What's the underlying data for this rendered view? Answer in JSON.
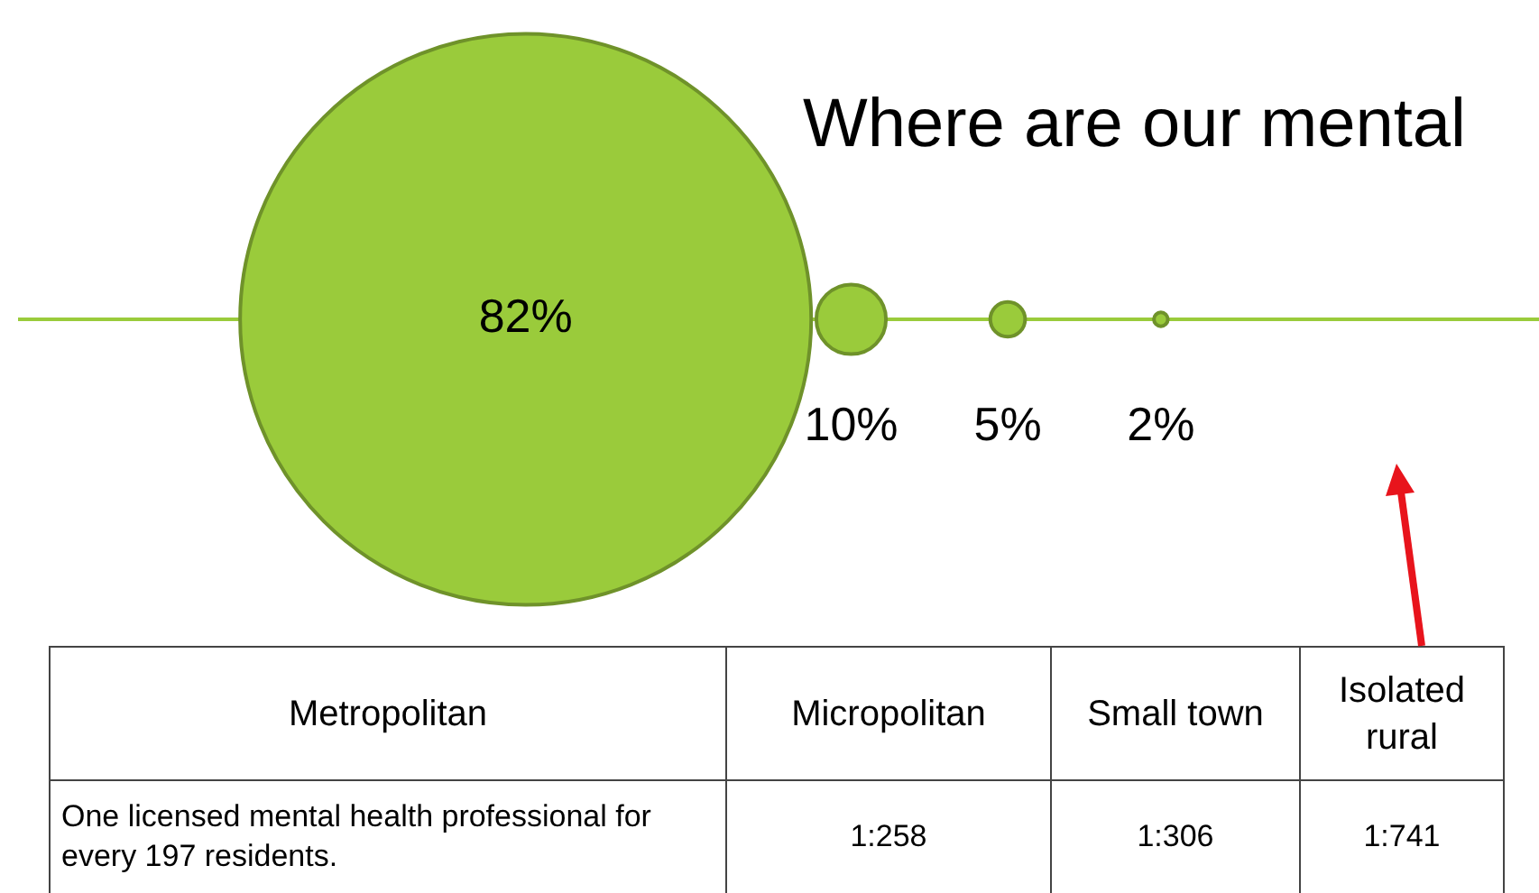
{
  "chart_data": {
    "type": "other",
    "title": "Where are our mental",
    "categories": [
      "Metropolitan",
      "Micropolitan",
      "Small town",
      "Isolated rural"
    ],
    "series": [
      {
        "color": "#9acb3b",
        "values": [
          82,
          10,
          5,
          2
        ],
        "value_labels": [
          "82%",
          "10%",
          "5%",
          "2%"
        ]
      }
    ],
    "annotations": [
      "One licensed mental health professional for every 197 residents.",
      "1:258",
      "1:306",
      "1:741"
    ],
    "legend": false
  }
}
